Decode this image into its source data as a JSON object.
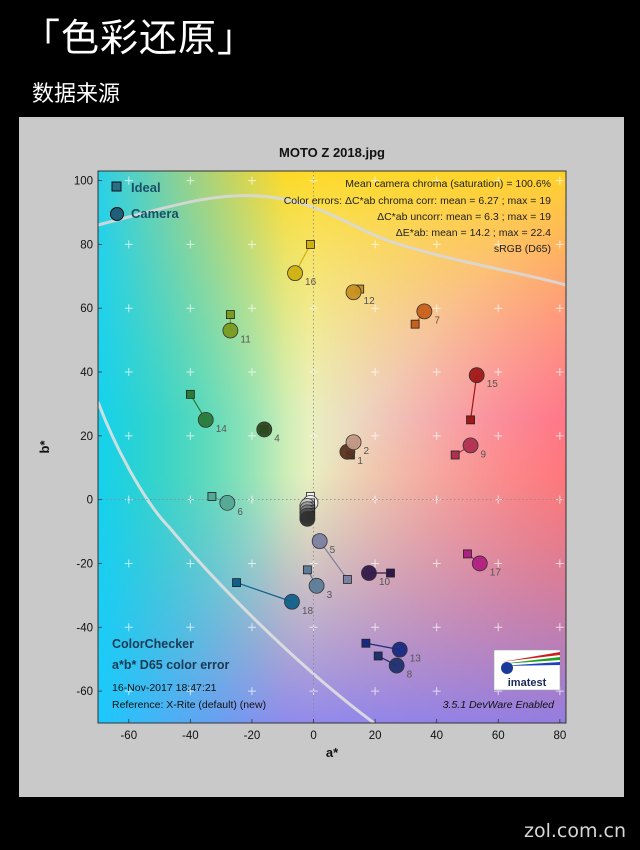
{
  "header": {
    "title": "「色彩还原」",
    "subtitle": "数据来源"
  },
  "watermark": "zol.com.cn",
  "colors": {
    "ideal_marker": "#2a6f8a",
    "camera_marker": "#1f5f7a",
    "background": "#000000",
    "panel": "#c9c9c9"
  },
  "chart_data": {
    "type": "scatter",
    "title": "MOTO Z 2018.jpg",
    "xlabel": "a*",
    "ylabel": "b*",
    "xlim": [
      -70,
      82
    ],
    "ylim": [
      -70,
      103
    ],
    "x_ticks": [
      -60,
      -40,
      -20,
      0,
      20,
      40,
      60,
      80
    ],
    "y_ticks": [
      -60,
      -40,
      -20,
      0,
      20,
      40,
      60,
      80,
      100
    ],
    "legend": {
      "placement": "top-left",
      "entries": [
        "Ideal",
        "Camera"
      ]
    },
    "stats": [
      "Mean camera chroma (saturation) = 100.6%",
      "Color errors:  ΔC*ab chroma corr:  mean = 6.27 ;  max = 19",
      "ΔC*ab uncorr:  mean = 6.3 ;  max = 19",
      "ΔE*ab:  mean = 14.2 ;  max = 22.4",
      "sRGB (D65)"
    ],
    "bottom_left_title": [
      "ColorChecker",
      "a*b* D65 color error"
    ],
    "date": "16-Nov-2017 18:47:21",
    "reference": "Reference: X-Rite (default) (new)",
    "version": "3.5.1  DevWare Enabled",
    "logo_text": "imatest",
    "patches": [
      {
        "id": "1",
        "ideal": [
          12,
          14
        ],
        "camera": [
          11,
          15
        ],
        "color": "#5a3420"
      },
      {
        "id": "2",
        "ideal": [
          13,
          18
        ],
        "camera": [
          13,
          18
        ],
        "color": "#c49a86"
      },
      {
        "id": "3",
        "ideal": [
          -2,
          -22
        ],
        "camera": [
          1,
          -27
        ],
        "color": "#5d7c98"
      },
      {
        "id": "4",
        "ideal": [
          -16,
          22
        ],
        "camera": [
          -16,
          22
        ],
        "color": "#2c4a20"
      },
      {
        "id": "5",
        "ideal": [
          11,
          -25
        ],
        "camera": [
          2,
          -13
        ],
        "color": "#7c80a0"
      },
      {
        "id": "6",
        "ideal": [
          -33,
          1
        ],
        "camera": [
          -28,
          -1
        ],
        "color": "#55a896"
      },
      {
        "id": "7",
        "ideal": [
          33,
          55
        ],
        "camera": [
          36,
          59
        ],
        "color": "#c8601c"
      },
      {
        "id": "8",
        "ideal": [
          21,
          -49
        ],
        "camera": [
          27,
          -52
        ],
        "color": "#203070"
      },
      {
        "id": "9",
        "ideal": [
          46,
          14
        ],
        "camera": [
          51,
          17
        ],
        "color": "#b03050"
      },
      {
        "id": "10",
        "ideal": [
          25,
          -23
        ],
        "camera": [
          18,
          -23
        ],
        "color": "#301848"
      },
      {
        "id": "11",
        "ideal": [
          -27,
          58
        ],
        "camera": [
          -27,
          53
        ],
        "color": "#7a9a20"
      },
      {
        "id": "12",
        "ideal": [
          15,
          66
        ],
        "camera": [
          13,
          65
        ],
        "color": "#c89020"
      },
      {
        "id": "13",
        "ideal": [
          17,
          -45
        ],
        "camera": [
          28,
          -47
        ],
        "color": "#182a80"
      },
      {
        "id": "14",
        "ideal": [
          -40,
          33
        ],
        "camera": [
          -35,
          25
        ],
        "color": "#2a7a3a"
      },
      {
        "id": "15",
        "ideal": [
          51,
          25
        ],
        "camera": [
          53,
          39
        ],
        "color": "#a01818"
      },
      {
        "id": "16",
        "ideal": [
          -1,
          80
        ],
        "camera": [
          -6,
          71
        ],
        "color": "#d0b010"
      },
      {
        "id": "17",
        "ideal": [
          50,
          -17
        ],
        "camera": [
          54,
          -20
        ],
        "color": "#b02080"
      },
      {
        "id": "18",
        "ideal": [
          -25,
          -26
        ],
        "camera": [
          -7,
          -32
        ],
        "color": "#10608a"
      },
      {
        "id": "19",
        "ideal": [
          -1,
          1
        ],
        "camera": [
          -1,
          -1
        ],
        "color": "#f0f0f0"
      },
      {
        "id": "20",
        "ideal": [
          -1,
          -1
        ],
        "camera": [
          -2,
          -2
        ],
        "color": "#c8c8c8"
      },
      {
        "id": "21",
        "ideal": [
          -1,
          -2
        ],
        "camera": [
          -2,
          -3
        ],
        "color": "#a0a0a0"
      },
      {
        "id": "22",
        "ideal": [
          -1,
          -3
        ],
        "camera": [
          -2,
          -4
        ],
        "color": "#787878"
      },
      {
        "id": "23",
        "ideal": [
          -1,
          -4
        ],
        "camera": [
          -2,
          -5
        ],
        "color": "#505050"
      },
      {
        "id": "24",
        "ideal": [
          -1,
          -5
        ],
        "camera": [
          -2,
          -6
        ],
        "color": "#303030"
      }
    ]
  }
}
